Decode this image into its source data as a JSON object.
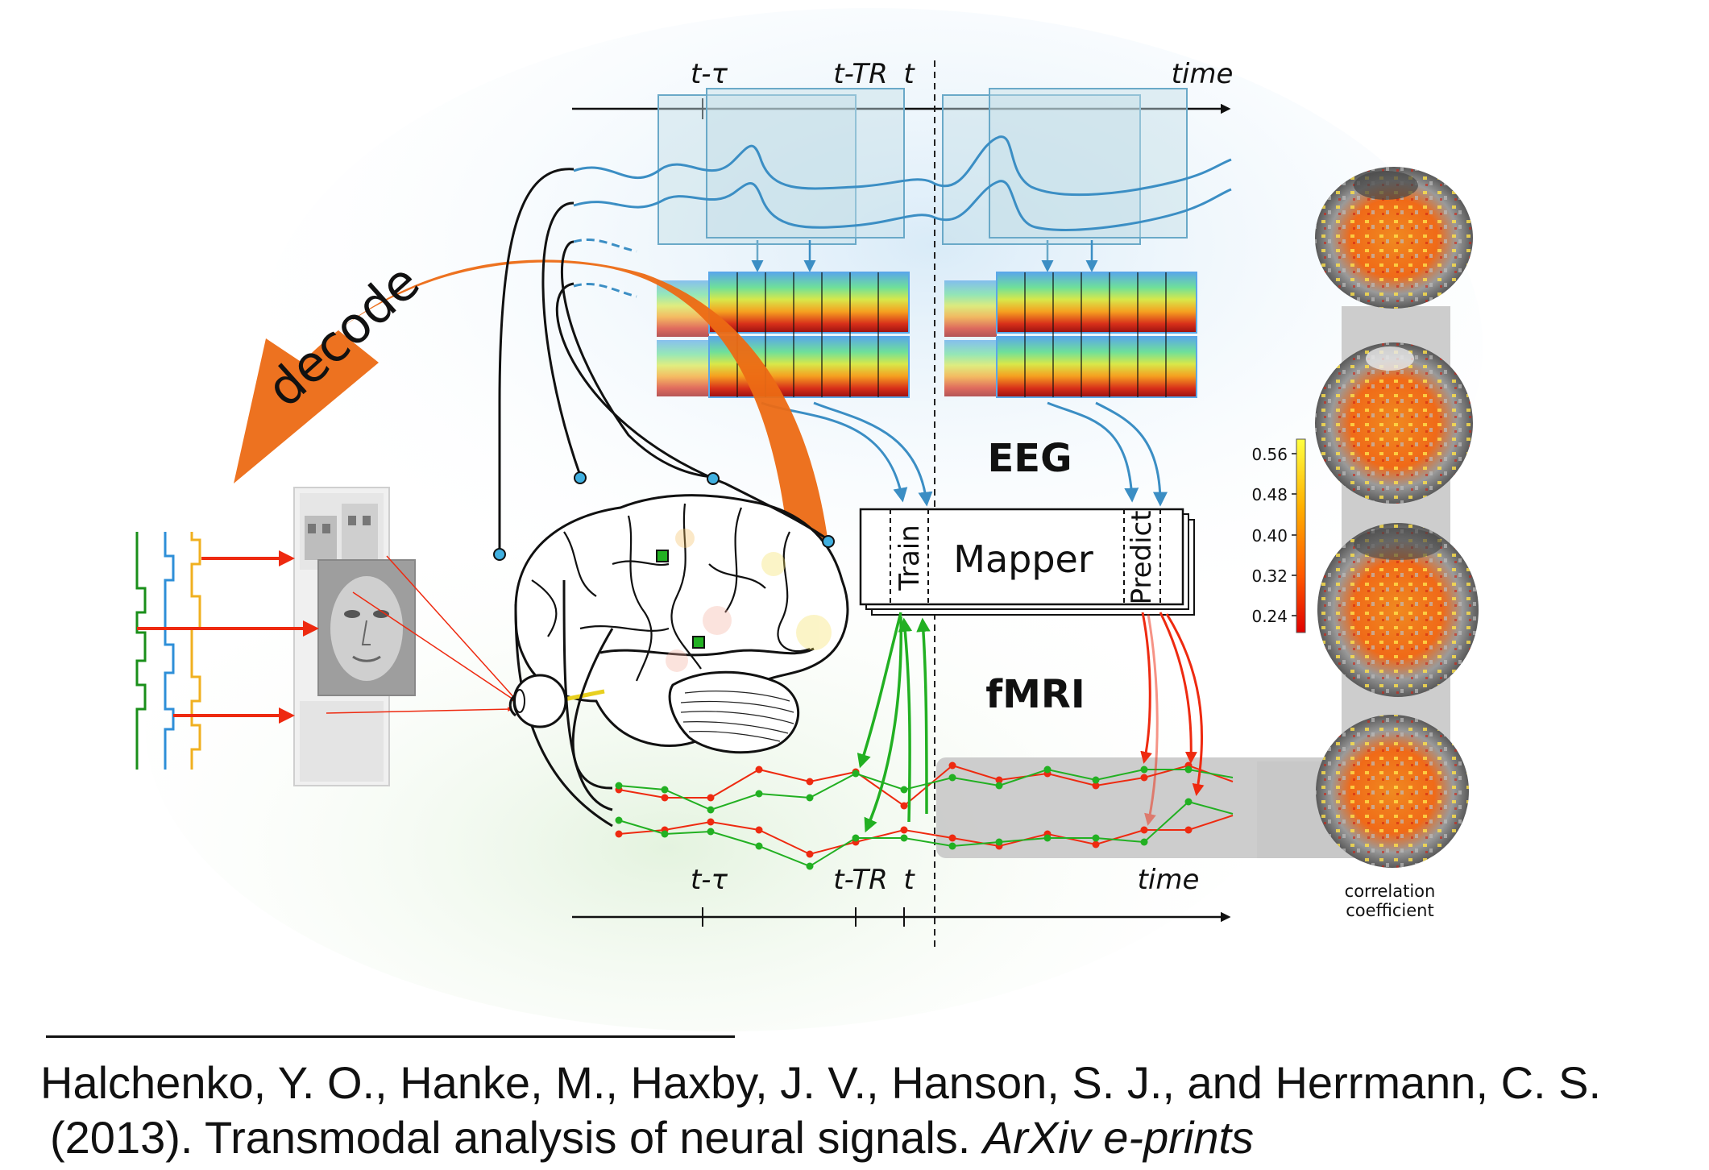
{
  "axis_top": {
    "t_tau": "t-τ",
    "t_tr": "t-TR",
    "t": "t",
    "time": "time"
  },
  "axis_bottom": {
    "t_tau": "t-τ",
    "t_tr": "t-TR",
    "t": "t",
    "time": "time"
  },
  "labels": {
    "decode": "decode",
    "eeg": "EEG",
    "fmri": "fMRI",
    "mapper": "Mapper",
    "train": "Train",
    "predict": "Predict"
  },
  "colorbar": {
    "ticks": [
      "0.56",
      "0.48",
      "0.40",
      "0.32",
      "0.24"
    ],
    "title_line1": "correlation",
    "title_line2": "coefficient",
    "colors": [
      "#ffff40",
      "#ffb000",
      "#ff5a00",
      "#e00000"
    ]
  },
  "colors": {
    "decode_arrow": "#ec6a14",
    "eeg_blue": "#3b8ec4",
    "train_green": "#22b022",
    "predict_red": "#ee2a10",
    "stim_green": "#1a8f1a",
    "stim_blue": "#2e8fd8",
    "stim_yellow": "#f0b020"
  },
  "citation": {
    "line1": "Halchenko, Y. O., Hanke, M., Haxby, J. V., Hanson, S. J., and Herrmann, C. S.",
    "line2_plain": "(2013). Transmodal analysis of neural signals. ",
    "line2_italic": "ArXiv e-prints"
  }
}
